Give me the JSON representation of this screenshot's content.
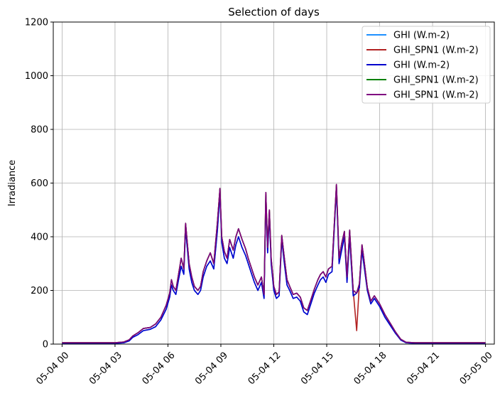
{
  "chart_data": {
    "type": "line",
    "title": "Selection of days",
    "xlabel": "",
    "ylabel": "Irradiance",
    "ylim": [
      0,
      1200
    ],
    "xlim_hours": [
      -0.5,
      24.5
    ],
    "y_ticks": [
      0,
      200,
      400,
      600,
      800,
      1000,
      1200
    ],
    "x_ticks": [
      {
        "h": 0,
        "label": "05-04 00"
      },
      {
        "h": 3,
        "label": "05-04 03"
      },
      {
        "h": 6,
        "label": "05-04 06"
      },
      {
        "h": 9,
        "label": "05-04 09"
      },
      {
        "h": 12,
        "label": "05-04 12"
      },
      {
        "h": 15,
        "label": "05-04 15"
      },
      {
        "h": 18,
        "label": "05-04 18"
      },
      {
        "h": 21,
        "label": "05-04 21"
      },
      {
        "h": 24,
        "label": "05-05 00"
      }
    ],
    "grid": true,
    "legend_position": "top-right",
    "series": [
      {
        "name": "GHI (W.m-2)",
        "color": "#1e90ff",
        "x": [
          0,
          3,
          3.5,
          3.8,
          4.0,
          4.3,
          4.6,
          5.0,
          5.3,
          5.6,
          5.9,
          6.1,
          6.2,
          6.3,
          6.45,
          6.6,
          6.75,
          6.9,
          7.0,
          7.2,
          7.35,
          7.5,
          7.7,
          7.85,
          8.0,
          8.2,
          8.4,
          8.6,
          8.8,
          8.95,
          9.05,
          9.2,
          9.35,
          9.5,
          9.7,
          9.85,
          10.0,
          10.2,
          10.4,
          10.55,
          10.7,
          10.9,
          11.1,
          11.3,
          11.45,
          11.55,
          11.65,
          11.75,
          11.85,
          12.0,
          12.15,
          12.3,
          12.45,
          12.6,
          12.75,
          12.9,
          13.1,
          13.3,
          13.5,
          13.7,
          13.9,
          14.1,
          14.3,
          14.5,
          14.65,
          14.8,
          14.95,
          15.1,
          15.3,
          15.55,
          15.7,
          15.85,
          16.0,
          16.15,
          16.3,
          16.5,
          16.7,
          16.85,
          17.0,
          17.1,
          17.2,
          17.3,
          17.5,
          17.7,
          18.0,
          18.3,
          18.6,
          18.9,
          19.2,
          19.5,
          20.0,
          21.0,
          24.0
        ],
        "y": [
          3,
          3,
          5,
          12,
          25,
          35,
          50,
          55,
          65,
          90,
          130,
          175,
          220,
          200,
          185,
          240,
          290,
          260,
          430,
          280,
          230,
          200,
          185,
          200,
          250,
          290,
          310,
          280,
          420,
          560,
          380,
          320,
          300,
          360,
          320,
          370,
          400,
          360,
          330,
          300,
          270,
          230,
          200,
          230,
          170,
          540,
          340,
          480,
          300,
          200,
          170,
          180,
          390,
          300,
          220,
          200,
          170,
          175,
          160,
          120,
          110,
          150,
          190,
          220,
          240,
          250,
          230,
          260,
          270,
          580,
          300,
          350,
          400,
          230,
          400,
          180,
          190,
          210,
          350,
          300,
          250,
          200,
          150,
          170,
          140,
          100,
          70,
          40,
          15,
          5,
          3,
          3,
          3
        ]
      },
      {
        "name": "GHI_SPN1 (W.m-2)",
        "color": "#b22222",
        "x": [
          0,
          3,
          3.5,
          3.8,
          4.0,
          4.3,
          4.6,
          5.0,
          5.3,
          5.6,
          5.9,
          6.1,
          6.2,
          6.3,
          6.45,
          6.6,
          6.75,
          6.9,
          7.0,
          7.2,
          7.35,
          7.5,
          7.7,
          7.85,
          8.0,
          8.2,
          8.4,
          8.6,
          8.8,
          8.95,
          9.05,
          9.2,
          9.35,
          9.5,
          9.7,
          9.85,
          10.0,
          10.2,
          10.4,
          10.55,
          10.7,
          10.9,
          11.1,
          11.3,
          11.45,
          11.55,
          11.65,
          11.75,
          11.85,
          12.0,
          12.15,
          12.3,
          12.45,
          12.6,
          12.75,
          12.9,
          13.1,
          13.3,
          13.5,
          13.7,
          13.9,
          14.1,
          14.3,
          14.5,
          14.65,
          14.8,
          14.95,
          15.1,
          15.3,
          15.55,
          15.7,
          15.85,
          16.0,
          16.15,
          16.3,
          16.5,
          16.7,
          16.85,
          17.0,
          17.1,
          17.2,
          17.3,
          17.5,
          17.7,
          18.0,
          18.3,
          18.6,
          18.9,
          19.2,
          19.5,
          20.0,
          21.0,
          24.0
        ],
        "y": [
          5,
          5,
          8,
          16,
          30,
          42,
          58,
          62,
          75,
          100,
          145,
          190,
          240,
          215,
          200,
          260,
          320,
          280,
          450,
          300,
          250,
          215,
          200,
          215,
          270,
          310,
          340,
          300,
          450,
          580,
          400,
          345,
          320,
          390,
          350,
          400,
          430,
          390,
          355,
          320,
          290,
          250,
          220,
          250,
          185,
          565,
          360,
          500,
          320,
          215,
          185,
          195,
          405,
          320,
          240,
          215,
          185,
          190,
          175,
          135,
          125,
          165,
          205,
          240,
          260,
          270,
          250,
          280,
          290,
          595,
          320,
          375,
          420,
          250,
          425,
          200,
          50,
          225,
          370,
          320,
          265,
          210,
          160,
          180,
          150,
          110,
          78,
          45,
          18,
          7,
          5,
          5,
          5
        ]
      },
      {
        "name": "GHI (W.m-2)",
        "color": "#0000cd",
        "x": [
          0,
          3,
          3.5,
          3.8,
          4.0,
          4.3,
          4.6,
          5.0,
          5.3,
          5.6,
          5.9,
          6.1,
          6.2,
          6.3,
          6.45,
          6.6,
          6.75,
          6.9,
          7.0,
          7.2,
          7.35,
          7.5,
          7.7,
          7.85,
          8.0,
          8.2,
          8.4,
          8.6,
          8.8,
          8.95,
          9.05,
          9.2,
          9.35,
          9.5,
          9.7,
          9.85,
          10.0,
          10.2,
          10.4,
          10.55,
          10.7,
          10.9,
          11.1,
          11.3,
          11.45,
          11.55,
          11.65,
          11.75,
          11.85,
          12.0,
          12.15,
          12.3,
          12.45,
          12.6,
          12.75,
          12.9,
          13.1,
          13.3,
          13.5,
          13.7,
          13.9,
          14.1,
          14.3,
          14.5,
          14.65,
          14.8,
          14.95,
          15.1,
          15.3,
          15.55,
          15.7,
          15.85,
          16.0,
          16.15,
          16.3,
          16.5,
          16.7,
          16.85,
          17.0,
          17.1,
          17.2,
          17.3,
          17.5,
          17.7,
          18.0,
          18.3,
          18.6,
          18.9,
          19.2,
          19.5,
          20.0,
          21.0,
          24.0
        ],
        "y": [
          3,
          3,
          5,
          12,
          25,
          35,
          50,
          55,
          65,
          90,
          130,
          175,
          220,
          200,
          185,
          240,
          290,
          260,
          430,
          280,
          230,
          200,
          185,
          200,
          250,
          290,
          310,
          280,
          420,
          560,
          380,
          320,
          300,
          360,
          320,
          370,
          400,
          360,
          330,
          300,
          270,
          230,
          200,
          230,
          170,
          540,
          340,
          480,
          300,
          200,
          170,
          180,
          390,
          300,
          220,
          200,
          170,
          175,
          160,
          120,
          110,
          150,
          190,
          220,
          240,
          250,
          230,
          260,
          270,
          580,
          300,
          350,
          400,
          230,
          400,
          180,
          190,
          210,
          350,
          300,
          250,
          200,
          150,
          170,
          140,
          100,
          70,
          40,
          15,
          5,
          3,
          3,
          3
        ]
      },
      {
        "name": "GHI_SPN1 (W.m-2)",
        "color": "#008000",
        "x": [
          0,
          3,
          3.5,
          3.8,
          4.0,
          4.3,
          4.6,
          5.0,
          5.3,
          5.6,
          5.9,
          6.1,
          6.2,
          6.3,
          6.45,
          6.6,
          6.75,
          6.9,
          7.0,
          7.2,
          7.35,
          7.5,
          7.7,
          7.85,
          8.0,
          8.2,
          8.4,
          8.6,
          8.8,
          8.95,
          9.05,
          9.2,
          9.35,
          9.5,
          9.7,
          9.85,
          10.0,
          10.2,
          10.4,
          10.55,
          10.7,
          10.9,
          11.1,
          11.3,
          11.45,
          11.55,
          11.65,
          11.75,
          11.85,
          12.0,
          12.15,
          12.3,
          12.45,
          12.6,
          12.75,
          12.9,
          13.1,
          13.3,
          13.5,
          13.7,
          13.9,
          14.1,
          14.3,
          14.5,
          14.65,
          14.8,
          14.95,
          15.1,
          15.3,
          15.55,
          15.7,
          15.85,
          16.0,
          16.15,
          16.3,
          16.5,
          16.7,
          16.85,
          17.0,
          17.1,
          17.2,
          17.3,
          17.5,
          17.7,
          18.0,
          18.3,
          18.6,
          18.9,
          19.2,
          19.5,
          20.0,
          21.0,
          24.0
        ],
        "y": [
          5,
          5,
          8,
          16,
          30,
          42,
          58,
          62,
          75,
          100,
          145,
          190,
          240,
          215,
          200,
          260,
          320,
          280,
          450,
          300,
          250,
          215,
          200,
          215,
          270,
          310,
          340,
          300,
          450,
          580,
          400,
          345,
          320,
          390,
          350,
          400,
          430,
          390,
          355,
          320,
          290,
          250,
          220,
          250,
          185,
          565,
          360,
          500,
          320,
          215,
          185,
          195,
          405,
          320,
          240,
          215,
          185,
          190,
          175,
          135,
          125,
          165,
          205,
          240,
          260,
          270,
          250,
          280,
          290,
          595,
          320,
          375,
          420,
          250,
          425,
          200,
          190,
          225,
          370,
          320,
          265,
          210,
          160,
          180,
          150,
          110,
          78,
          45,
          18,
          7,
          5,
          5,
          5
        ]
      },
      {
        "name": "GHI_SPN1 (W.m-2)",
        "color": "#800080",
        "x": [
          0,
          3,
          3.5,
          3.8,
          4.0,
          4.3,
          4.6,
          5.0,
          5.3,
          5.6,
          5.9,
          6.1,
          6.2,
          6.3,
          6.45,
          6.6,
          6.75,
          6.9,
          7.0,
          7.2,
          7.35,
          7.5,
          7.7,
          7.85,
          8.0,
          8.2,
          8.4,
          8.6,
          8.8,
          8.95,
          9.05,
          9.2,
          9.35,
          9.5,
          9.7,
          9.85,
          10.0,
          10.2,
          10.4,
          10.55,
          10.7,
          10.9,
          11.1,
          11.3,
          11.45,
          11.55,
          11.65,
          11.75,
          11.85,
          12.0,
          12.15,
          12.3,
          12.45,
          12.6,
          12.75,
          12.9,
          13.1,
          13.3,
          13.5,
          13.7,
          13.9,
          14.1,
          14.3,
          14.5,
          14.65,
          14.8,
          14.95,
          15.1,
          15.3,
          15.55,
          15.7,
          15.85,
          16.0,
          16.15,
          16.3,
          16.5,
          16.7,
          16.85,
          17.0,
          17.1,
          17.2,
          17.3,
          17.5,
          17.7,
          18.0,
          18.3,
          18.6,
          18.9,
          19.2,
          19.5,
          20.0,
          21.0,
          24.0
        ],
        "y": [
          5,
          5,
          8,
          16,
          30,
          42,
          58,
          62,
          75,
          100,
          145,
          190,
          240,
          215,
          200,
          260,
          320,
          280,
          450,
          300,
          250,
          215,
          200,
          215,
          270,
          310,
          340,
          300,
          450,
          580,
          400,
          345,
          320,
          390,
          350,
          400,
          430,
          390,
          355,
          320,
          290,
          250,
          220,
          250,
          185,
          565,
          360,
          500,
          320,
          215,
          185,
          195,
          405,
          320,
          240,
          215,
          185,
          190,
          175,
          135,
          125,
          165,
          205,
          240,
          260,
          270,
          250,
          280,
          290,
          595,
          320,
          375,
          420,
          250,
          425,
          200,
          190,
          225,
          370,
          320,
          265,
          210,
          160,
          180,
          150,
          110,
          78,
          45,
          18,
          7,
          5,
          5,
          5
        ]
      }
    ]
  }
}
